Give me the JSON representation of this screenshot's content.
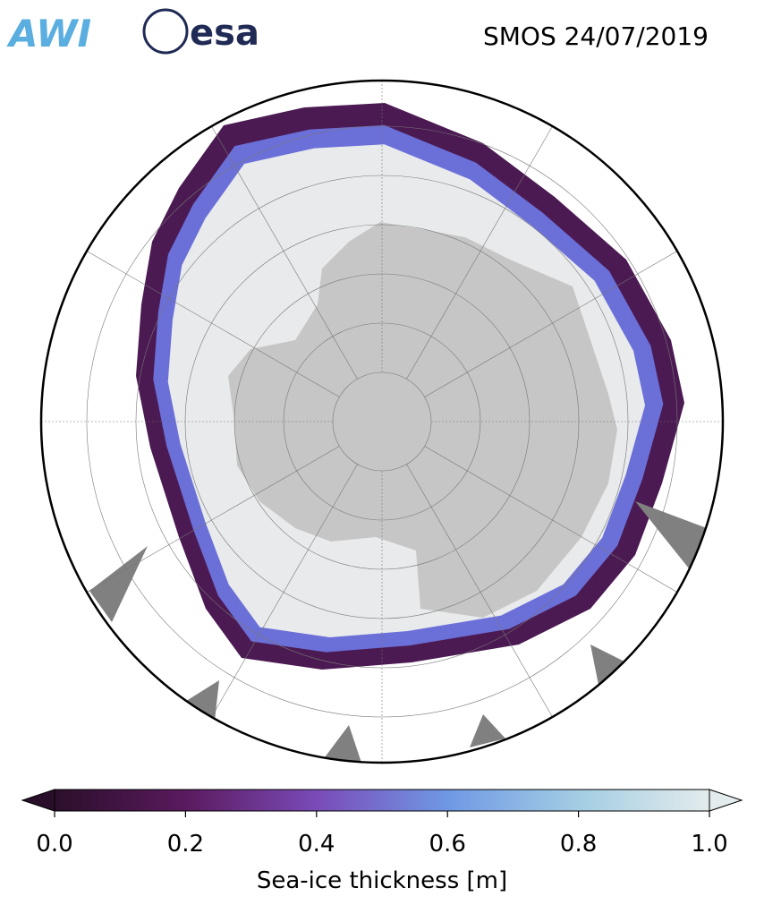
{
  "header": {
    "logos": [
      "AWI",
      "esa"
    ],
    "title": "SMOS 24/07/2019"
  },
  "colorbar": {
    "label": "Sea-ice thickness [m]",
    "lim": [
      0,
      1
    ],
    "ticks": [
      {
        "value": 0,
        "label": "0.0"
      },
      {
        "value": 0.2,
        "label": "0.2"
      },
      {
        "value": 0.4,
        "label": "0.4"
      },
      {
        "value": 0.6,
        "label": "0.6"
      },
      {
        "value": 0.8,
        "label": "0.8"
      },
      {
        "value": 1,
        "label": "1.0"
      }
    ],
    "colors": [
      "#2a0f2a",
      "#5a1a5e",
      "#7a4bb8",
      "#6f98e4",
      "#a3cde3",
      "#e3ecec"
    ]
  }
}
